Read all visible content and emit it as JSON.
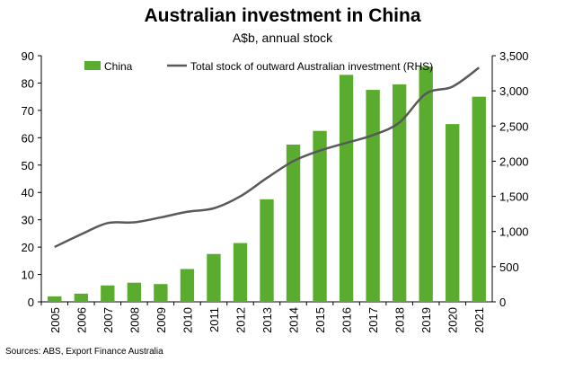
{
  "chart_data": {
    "type": "bar",
    "title": "Australian investment in China",
    "subtitle": "A$b, annual stock",
    "source": "Sources: ABS, Export Finance Australia",
    "categories": [
      "2005",
      "2006",
      "2007",
      "2008",
      "2009",
      "2010",
      "2011",
      "2012",
      "2013",
      "2014",
      "2015",
      "2016",
      "2017",
      "2018",
      "2019",
      "2020",
      "2021"
    ],
    "series": [
      {
        "name": "China",
        "type": "bar",
        "axis": "left",
        "color": "#5aac2f",
        "values": [
          2,
          3,
          6,
          7,
          6.5,
          12,
          17.5,
          21.5,
          37.5,
          57.5,
          62.5,
          83,
          77.5,
          79.5,
          86,
          65,
          75
        ]
      },
      {
        "name": "Total stock of outward Australian investment (RHS)",
        "type": "line",
        "axis": "right",
        "color": "#595959",
        "values": [
          780,
          960,
          1120,
          1130,
          1200,
          1280,
          1330,
          1500,
          1760,
          2000,
          2150,
          2260,
          2370,
          2550,
          2960,
          3060,
          3330
        ]
      }
    ],
    "yleft": {
      "min": 0,
      "max": 90,
      "ticks": [
        "0",
        "10",
        "20",
        "30",
        "40",
        "50",
        "60",
        "70",
        "80",
        "90"
      ]
    },
    "yright": {
      "min": 0,
      "max": 3500,
      "ticks": [
        "0",
        "500",
        "1,000",
        "1,500",
        "2,000",
        "2,500",
        "3,000",
        "3,500"
      ]
    },
    "grid": false,
    "legend": "top"
  }
}
